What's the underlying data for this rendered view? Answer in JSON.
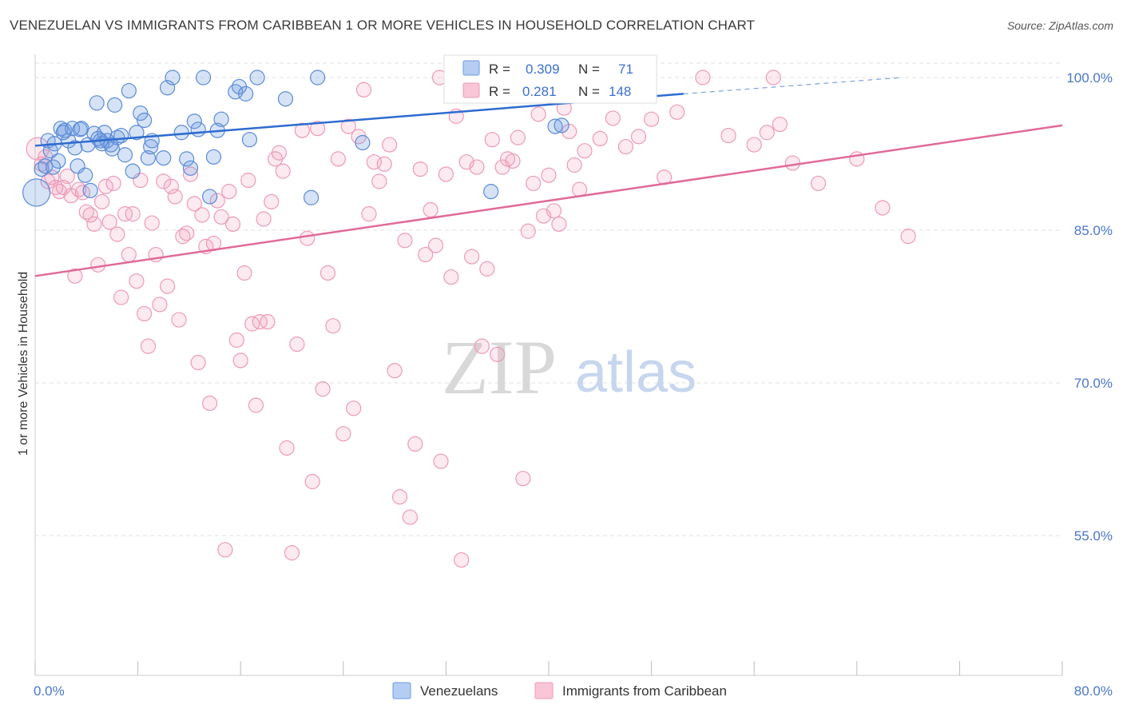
{
  "title": "VENEZUELAN VS IMMIGRANTS FROM CARIBBEAN 1 OR MORE VEHICLES IN HOUSEHOLD CORRELATION CHART",
  "source": "Source: ZipAtlas.com",
  "watermark": {
    "zip": "ZIP",
    "atlas": "atlas"
  },
  "colors": {
    "venezuelans": "#6a9ae0",
    "caribbean": "#f0a0bc",
    "venezuelans_line": "#2d6bd0",
    "caribbean_line": "#e06a98",
    "tick_text": "#4a76c8"
  },
  "stats": {
    "venezuelans": {
      "r_label": "R =",
      "r_value": "0.309",
      "n_label": "N =",
      "n_value": "71"
    },
    "caribbean": {
      "r_label": "R =",
      "r_value": "0.281",
      "n_label": "N =",
      "n_value": "148"
    }
  },
  "chart_data": {
    "type": "scatter",
    "xlabel": "",
    "ylabel": "1 or more Vehicles in Household",
    "xlim": [
      0,
      80
    ],
    "ylim": [
      40,
      101
    ],
    "x_tick_labels": [
      "0.0%",
      "80.0%"
    ],
    "y_ticks": [
      55,
      70,
      85,
      100
    ],
    "y_tick_labels": [
      "55.0%",
      "70.0%",
      "85.0%",
      "100.0%"
    ],
    "grid": true,
    "legend_position": "bottom",
    "series": [
      {
        "name": "Venezuelans",
        "trend": {
          "x0": 0,
          "y0": 93.3,
          "x1": 50.5,
          "y1": 98.4,
          "dashed_to_x": 67.5,
          "dashed_to_y": 100.0
        },
        "points": [
          [
            0.1,
            88.7
          ],
          [
            0.5,
            91.0
          ],
          [
            0.8,
            91.3
          ],
          [
            1.0,
            93.8
          ],
          [
            1.2,
            92.8
          ],
          [
            1.5,
            93.5
          ],
          [
            1.8,
            91.8
          ],
          [
            2.0,
            95.0
          ],
          [
            2.3,
            94.8
          ],
          [
            2.6,
            93.8
          ],
          [
            2.9,
            95.0
          ],
          [
            3.1,
            93.1
          ],
          [
            3.3,
            91.3
          ],
          [
            3.6,
            95.0
          ],
          [
            3.9,
            90.4
          ],
          [
            4.1,
            93.4
          ],
          [
            4.3,
            88.9
          ],
          [
            4.6,
            94.5
          ],
          [
            4.8,
            97.5
          ],
          [
            5.1,
            93.8
          ],
          [
            5.4,
            94.6
          ],
          [
            5.6,
            93.8
          ],
          [
            5.9,
            93.4
          ],
          [
            6.2,
            97.3
          ],
          [
            6.4,
            94.1
          ],
          [
            6.7,
            94.3
          ],
          [
            7.0,
            92.4
          ],
          [
            7.3,
            98.7
          ],
          [
            7.6,
            90.8
          ],
          [
            7.9,
            94.6
          ],
          [
            8.2,
            96.5
          ],
          [
            8.5,
            95.8
          ],
          [
            8.8,
            92.1
          ],
          [
            9.1,
            93.8
          ],
          [
            10.3,
            99.0
          ],
          [
            10.7,
            100.0
          ],
          [
            11.4,
            94.6
          ],
          [
            11.8,
            92.0
          ],
          [
            12.1,
            91.1
          ],
          [
            12.4,
            95.7
          ],
          [
            12.7,
            94.9
          ],
          [
            13.1,
            100.0
          ],
          [
            13.6,
            88.3
          ],
          [
            13.9,
            92.2
          ],
          [
            14.2,
            94.8
          ],
          [
            14.5,
            95.9
          ],
          [
            15.6,
            98.6
          ],
          [
            15.9,
            99.1
          ],
          [
            16.4,
            98.4
          ],
          [
            16.7,
            93.9
          ],
          [
            17.3,
            100.0
          ],
          [
            19.5,
            97.9
          ],
          [
            22.0,
            100.0
          ],
          [
            21.5,
            88.2
          ],
          [
            25.5,
            93.6
          ],
          [
            36.0,
            100.0
          ],
          [
            37.5,
            100.0
          ],
          [
            40.5,
            95.2
          ],
          [
            41.0,
            95.3
          ],
          [
            35.5,
            88.8
          ],
          [
            2.2,
            94.6
          ],
          [
            5.2,
            93.5
          ],
          [
            9.0,
            93.2
          ],
          [
            6.0,
            93.0
          ],
          [
            1.4,
            91.2
          ],
          [
            3.5,
            94.9
          ],
          [
            4.9,
            94.0
          ],
          [
            10.0,
            92.1
          ]
        ]
      },
      {
        "name": "Immigrants from Caribbean",
        "trend": {
          "x0": 0,
          "y0": 80.5,
          "x1": 80.0,
          "y1": 95.3
        },
        "points": [
          [
            0.2,
            93.0
          ],
          [
            0.5,
            91.5
          ],
          [
            0.8,
            92.2
          ],
          [
            1.0,
            89.8
          ],
          [
            1.3,
            90.2
          ],
          [
            1.6,
            89.2
          ],
          [
            1.9,
            88.8
          ],
          [
            2.2,
            89.2
          ],
          [
            2.5,
            90.3
          ],
          [
            2.8,
            88.4
          ],
          [
            3.1,
            80.5
          ],
          [
            3.4,
            89.0
          ],
          [
            3.7,
            88.7
          ],
          [
            4.0,
            86.8
          ],
          [
            4.3,
            86.5
          ],
          [
            4.6,
            85.6
          ],
          [
            4.9,
            81.6
          ],
          [
            5.2,
            87.8
          ],
          [
            5.5,
            89.3
          ],
          [
            5.8,
            85.8
          ],
          [
            6.1,
            89.6
          ],
          [
            6.4,
            84.6
          ],
          [
            6.7,
            78.4
          ],
          [
            7.0,
            86.6
          ],
          [
            7.3,
            82.6
          ],
          [
            7.6,
            86.6
          ],
          [
            7.9,
            80.0
          ],
          [
            8.2,
            89.9
          ],
          [
            8.5,
            76.8
          ],
          [
            8.8,
            73.6
          ],
          [
            9.1,
            85.7
          ],
          [
            9.4,
            82.6
          ],
          [
            9.7,
            77.7
          ],
          [
            10.0,
            89.8
          ],
          [
            10.3,
            79.5
          ],
          [
            10.6,
            89.3
          ],
          [
            10.9,
            88.3
          ],
          [
            11.2,
            76.2
          ],
          [
            11.5,
            84.4
          ],
          [
            11.8,
            84.7
          ],
          [
            12.1,
            90.5
          ],
          [
            12.4,
            87.6
          ],
          [
            12.7,
            72.0
          ],
          [
            13.0,
            86.5
          ],
          [
            13.3,
            83.4
          ],
          [
            13.6,
            68.0
          ],
          [
            13.9,
            83.7
          ],
          [
            14.2,
            87.9
          ],
          [
            14.5,
            86.3
          ],
          [
            14.8,
            53.6
          ],
          [
            15.1,
            88.8
          ],
          [
            15.4,
            85.6
          ],
          [
            15.7,
            74.2
          ],
          [
            16.0,
            72.2
          ],
          [
            16.3,
            80.8
          ],
          [
            16.6,
            89.9
          ],
          [
            16.9,
            75.8
          ],
          [
            17.2,
            67.8
          ],
          [
            17.5,
            76.0
          ],
          [
            17.8,
            86.1
          ],
          [
            18.1,
            76.0
          ],
          [
            18.4,
            87.8
          ],
          [
            18.7,
            92.0
          ],
          [
            19.0,
            92.6
          ],
          [
            19.3,
            90.8
          ],
          [
            19.6,
            63.6
          ],
          [
            20.0,
            53.3
          ],
          [
            20.4,
            73.8
          ],
          [
            20.8,
            94.8
          ],
          [
            21.2,
            84.2
          ],
          [
            21.6,
            60.3
          ],
          [
            22.0,
            95.0
          ],
          [
            22.4,
            69.4
          ],
          [
            22.8,
            80.8
          ],
          [
            23.2,
            75.6
          ],
          [
            23.6,
            92.0
          ],
          [
            24.0,
            65.0
          ],
          [
            24.4,
            95.2
          ],
          [
            24.8,
            67.5
          ],
          [
            25.2,
            94.2
          ],
          [
            25.6,
            98.8
          ],
          [
            26.0,
            86.6
          ],
          [
            26.4,
            91.7
          ],
          [
            26.8,
            89.8
          ],
          [
            27.2,
            91.5
          ],
          [
            27.6,
            93.4
          ],
          [
            28.0,
            71.2
          ],
          [
            28.4,
            58.8
          ],
          [
            28.8,
            84.0
          ],
          [
            29.2,
            56.8
          ],
          [
            29.6,
            64.0
          ],
          [
            30.0,
            91.0
          ],
          [
            30.4,
            82.6
          ],
          [
            30.8,
            87.0
          ],
          [
            31.2,
            83.5
          ],
          [
            31.6,
            62.3
          ],
          [
            32.0,
            90.5
          ],
          [
            32.4,
            80.4
          ],
          [
            32.8,
            96.2
          ],
          [
            33.2,
            52.6
          ],
          [
            33.6,
            91.7
          ],
          [
            34.0,
            82.4
          ],
          [
            34.4,
            91.2
          ],
          [
            34.8,
            73.6
          ],
          [
            35.2,
            81.2
          ],
          [
            35.6,
            93.9
          ],
          [
            36.0,
            72.8
          ],
          [
            36.4,
            91.2
          ],
          [
            36.8,
            92.0
          ],
          [
            37.2,
            91.8
          ],
          [
            37.6,
            94.1
          ],
          [
            38.0,
            60.6
          ],
          [
            38.4,
            84.9
          ],
          [
            38.8,
            89.6
          ],
          [
            39.2,
            96.4
          ],
          [
            39.6,
            86.4
          ],
          [
            40.0,
            90.4
          ],
          [
            40.4,
            86.9
          ],
          [
            40.8,
            85.6
          ],
          [
            41.2,
            97.0
          ],
          [
            41.6,
            94.7
          ],
          [
            42.0,
            91.4
          ],
          [
            42.4,
            89.0
          ],
          [
            42.8,
            92.8
          ],
          [
            44.0,
            94.0
          ],
          [
            45.0,
            96.0
          ],
          [
            46.0,
            93.2
          ],
          [
            47.0,
            94.2
          ],
          [
            48.0,
            95.9
          ],
          [
            49.0,
            90.2
          ],
          [
            50.0,
            96.6
          ],
          [
            52.0,
            100.0
          ],
          [
            54.0,
            94.3
          ],
          [
            56.0,
            93.4
          ],
          [
            57.0,
            94.6
          ],
          [
            58.0,
            95.4
          ],
          [
            59.0,
            91.6
          ],
          [
            61.0,
            89.6
          ],
          [
            64.0,
            92.0
          ],
          [
            66.0,
            87.2
          ],
          [
            68.0,
            84.4
          ],
          [
            57.5,
            100.0
          ],
          [
            45.5,
            100.0
          ],
          [
            31.5,
            100.0
          ]
        ]
      }
    ]
  }
}
